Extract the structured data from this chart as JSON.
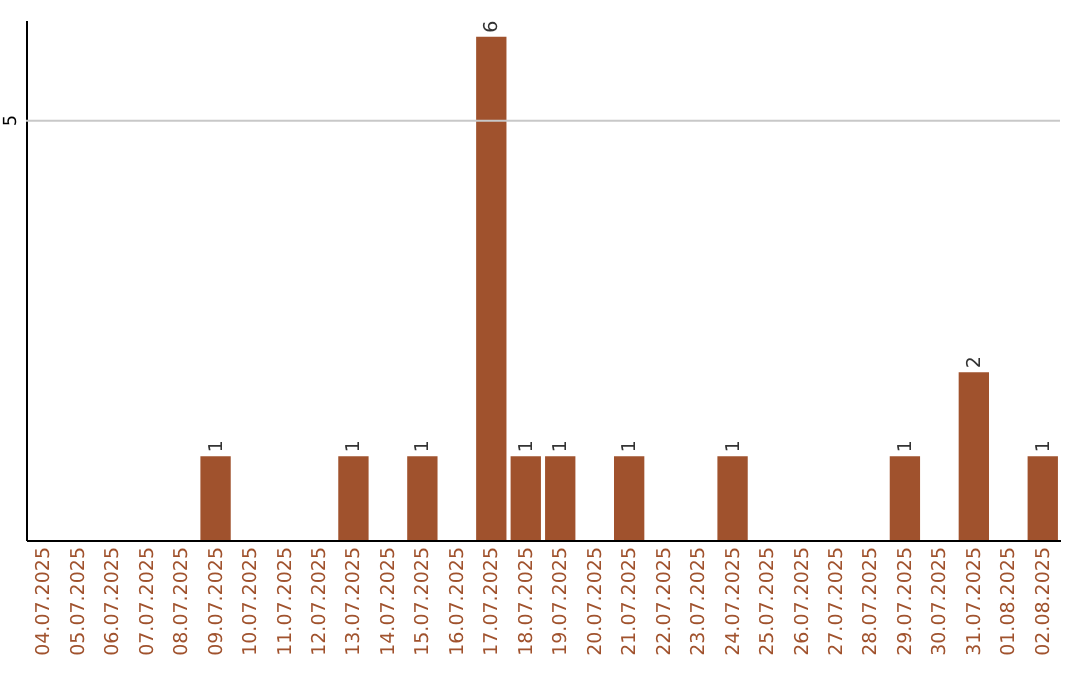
{
  "chart_data": {
    "type": "bar",
    "categories": [
      "04.07.2025",
      "05.07.2025",
      "06.07.2025",
      "07.07.2025",
      "08.07.2025",
      "09.07.2025",
      "10.07.2025",
      "11.07.2025",
      "12.07.2025",
      "13.07.2025",
      "14.07.2025",
      "15.07.2025",
      "16.07.2025",
      "17.07.2025",
      "18.07.2025",
      "19.07.2025",
      "20.07.2025",
      "21.07.2025",
      "22.07.2025",
      "23.07.2025",
      "24.07.2025",
      "25.07.2025",
      "26.07.2025",
      "27.07.2025",
      "28.07.2025",
      "29.07.2025",
      "30.07.2025",
      "31.07.2025",
      "01.08.2025",
      "02.08.2025"
    ],
    "values": [
      null,
      null,
      null,
      null,
      null,
      1,
      null,
      null,
      null,
      1,
      null,
      1,
      null,
      6,
      1,
      1,
      null,
      1,
      null,
      null,
      1,
      null,
      null,
      null,
      null,
      1,
      null,
      2,
      null,
      1
    ],
    "color": "#a0522d",
    "ylim": [
      0,
      6.2
    ],
    "data_labels": true,
    "ref_lines": [
      {
        "axis": "y",
        "value": 5,
        "label": "5",
        "color": "#c8c8c8"
      }
    ]
  }
}
